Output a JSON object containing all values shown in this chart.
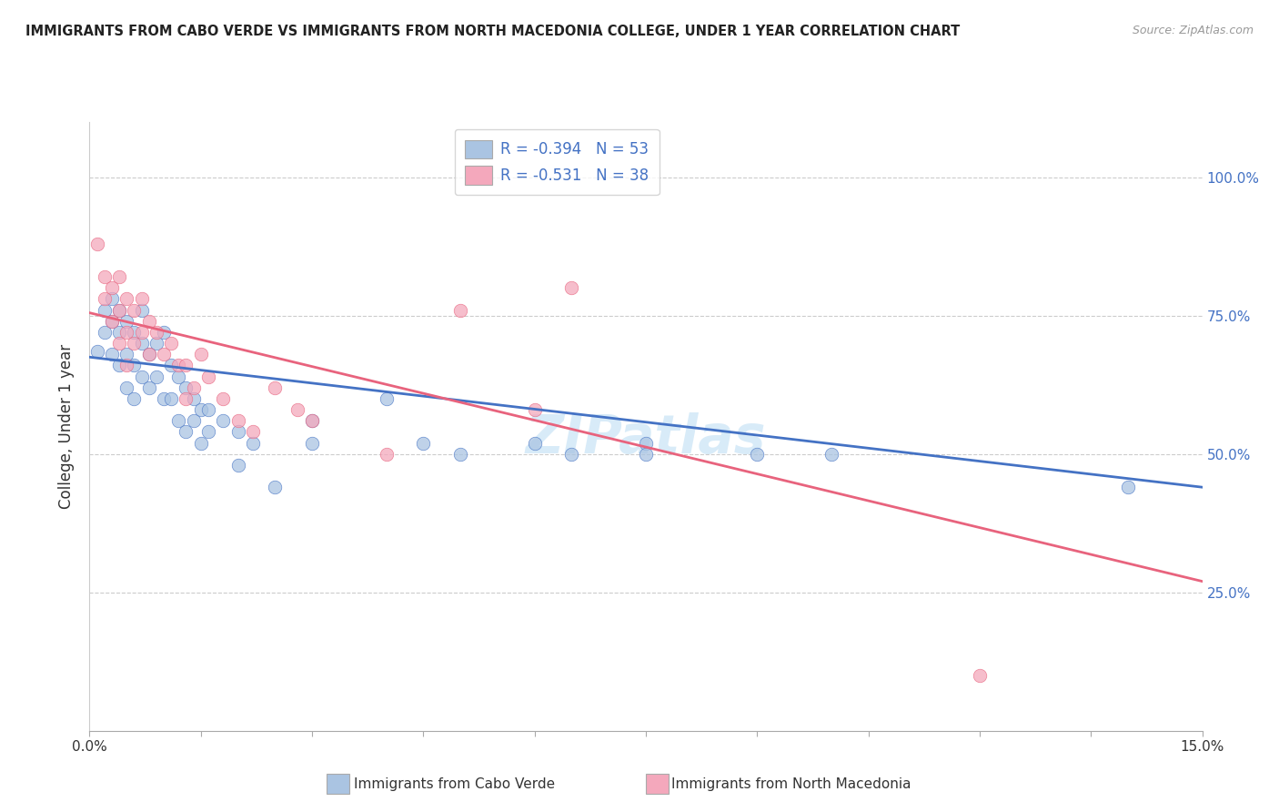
{
  "title": "IMMIGRANTS FROM CABO VERDE VS IMMIGRANTS FROM NORTH MACEDONIA COLLEGE, UNDER 1 YEAR CORRELATION CHART",
  "source": "Source: ZipAtlas.com",
  "ylabel": "College, Under 1 year",
  "xmin": 0.0,
  "xmax": 0.15,
  "ymin": 0.0,
  "ymax": 1.1,
  "y_ticks": [
    0.25,
    0.5,
    0.75,
    1.0
  ],
  "y_tick_labels": [
    "25.0%",
    "50.0%",
    "75.0%",
    "100.0%"
  ],
  "x_ticks": [
    0.0,
    0.015,
    0.03,
    0.045,
    0.06,
    0.075,
    0.09,
    0.105,
    0.12,
    0.135,
    0.15
  ],
  "color_blue": "#aac4e2",
  "color_pink": "#f4a8bc",
  "line_blue": "#4472c4",
  "line_pink": "#e8637d",
  "watermark": "ZIPatlas",
  "cabo_verde_points": [
    [
      0.001,
      0.685
    ],
    [
      0.002,
      0.72
    ],
    [
      0.002,
      0.76
    ],
    [
      0.003,
      0.74
    ],
    [
      0.003,
      0.78
    ],
    [
      0.003,
      0.68
    ],
    [
      0.004,
      0.76
    ],
    [
      0.004,
      0.72
    ],
    [
      0.004,
      0.66
    ],
    [
      0.005,
      0.74
    ],
    [
      0.005,
      0.68
    ],
    [
      0.005,
      0.62
    ],
    [
      0.006,
      0.72
    ],
    [
      0.006,
      0.66
    ],
    [
      0.006,
      0.6
    ],
    [
      0.007,
      0.76
    ],
    [
      0.007,
      0.7
    ],
    [
      0.007,
      0.64
    ],
    [
      0.008,
      0.68
    ],
    [
      0.008,
      0.62
    ],
    [
      0.009,
      0.7
    ],
    [
      0.009,
      0.64
    ],
    [
      0.01,
      0.72
    ],
    [
      0.01,
      0.6
    ],
    [
      0.011,
      0.66
    ],
    [
      0.011,
      0.6
    ],
    [
      0.012,
      0.64
    ],
    [
      0.012,
      0.56
    ],
    [
      0.013,
      0.62
    ],
    [
      0.013,
      0.54
    ],
    [
      0.014,
      0.6
    ],
    [
      0.014,
      0.56
    ],
    [
      0.015,
      0.58
    ],
    [
      0.015,
      0.52
    ],
    [
      0.016,
      0.58
    ],
    [
      0.016,
      0.54
    ],
    [
      0.018,
      0.56
    ],
    [
      0.02,
      0.54
    ],
    [
      0.02,
      0.48
    ],
    [
      0.022,
      0.52
    ],
    [
      0.025,
      0.44
    ],
    [
      0.03,
      0.56
    ],
    [
      0.03,
      0.52
    ],
    [
      0.04,
      0.6
    ],
    [
      0.045,
      0.52
    ],
    [
      0.05,
      0.5
    ],
    [
      0.06,
      0.52
    ],
    [
      0.065,
      0.5
    ],
    [
      0.075,
      0.52
    ],
    [
      0.075,
      0.5
    ],
    [
      0.09,
      0.5
    ],
    [
      0.1,
      0.5
    ],
    [
      0.14,
      0.44
    ]
  ],
  "north_mac_points": [
    [
      0.001,
      0.88
    ],
    [
      0.002,
      0.82
    ],
    [
      0.002,
      0.78
    ],
    [
      0.003,
      0.8
    ],
    [
      0.003,
      0.74
    ],
    [
      0.004,
      0.82
    ],
    [
      0.004,
      0.76
    ],
    [
      0.004,
      0.7
    ],
    [
      0.005,
      0.78
    ],
    [
      0.005,
      0.72
    ],
    [
      0.005,
      0.66
    ],
    [
      0.006,
      0.76
    ],
    [
      0.006,
      0.7
    ],
    [
      0.007,
      0.78
    ],
    [
      0.007,
      0.72
    ],
    [
      0.008,
      0.74
    ],
    [
      0.008,
      0.68
    ],
    [
      0.009,
      0.72
    ],
    [
      0.01,
      0.68
    ],
    [
      0.011,
      0.7
    ],
    [
      0.012,
      0.66
    ],
    [
      0.013,
      0.66
    ],
    [
      0.013,
      0.6
    ],
    [
      0.014,
      0.62
    ],
    [
      0.015,
      0.68
    ],
    [
      0.016,
      0.64
    ],
    [
      0.018,
      0.6
    ],
    [
      0.02,
      0.56
    ],
    [
      0.022,
      0.54
    ],
    [
      0.025,
      0.62
    ],
    [
      0.028,
      0.58
    ],
    [
      0.03,
      0.56
    ],
    [
      0.04,
      0.5
    ],
    [
      0.05,
      0.76
    ],
    [
      0.065,
      0.8
    ],
    [
      0.06,
      0.58
    ],
    [
      0.12,
      0.1
    ]
  ],
  "blue_line_x": [
    0.0,
    0.15
  ],
  "blue_line_y": [
    0.675,
    0.44
  ],
  "pink_line_x": [
    0.0,
    0.15
  ],
  "pink_line_y": [
    0.755,
    0.27
  ]
}
